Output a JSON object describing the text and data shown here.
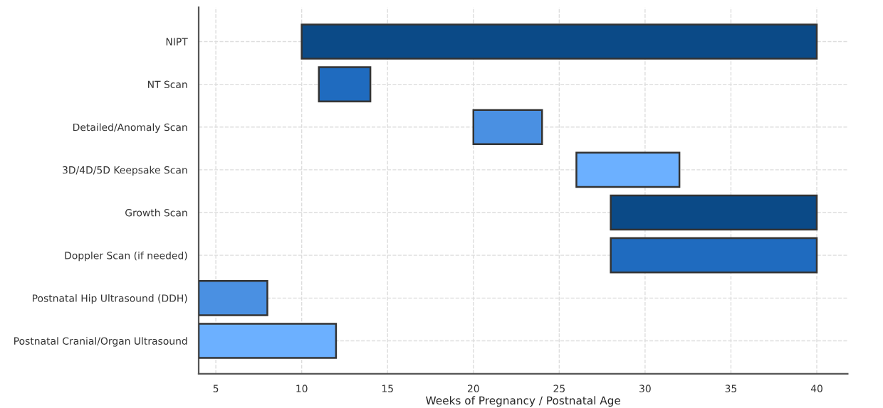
{
  "chart_data": {
    "type": "bar",
    "orientation": "horizontal",
    "xlabel": "Weeks of Pregnancy / Postnatal Age",
    "categories": [
      "NIPT",
      "NT Scan",
      "Detailed/Anomaly Scan",
      "3D/4D/5D Keepsake Scan",
      "Growth Scan",
      "Doppler Scan (if needed)",
      "Postnatal Hip Ultrasound (DDH)",
      "Postnatal Cranial/Organ Ultrasound"
    ],
    "base": [
      10,
      11,
      20,
      26,
      28,
      28,
      4,
      4
    ],
    "values": [
      30,
      3,
      4,
      6,
      12,
      12,
      4,
      8
    ],
    "colors": [
      "#0b4a87",
      "#1f6bbf",
      "#4a90e2",
      "#6cb0ff",
      "#0b4a87",
      "#1f6bbf",
      "#4a90e2",
      "#6cb0ff"
    ],
    "xlim": [
      4,
      41.8
    ],
    "xticks": [
      5,
      10,
      15,
      20,
      25,
      30,
      35,
      40
    ],
    "grid": true
  }
}
